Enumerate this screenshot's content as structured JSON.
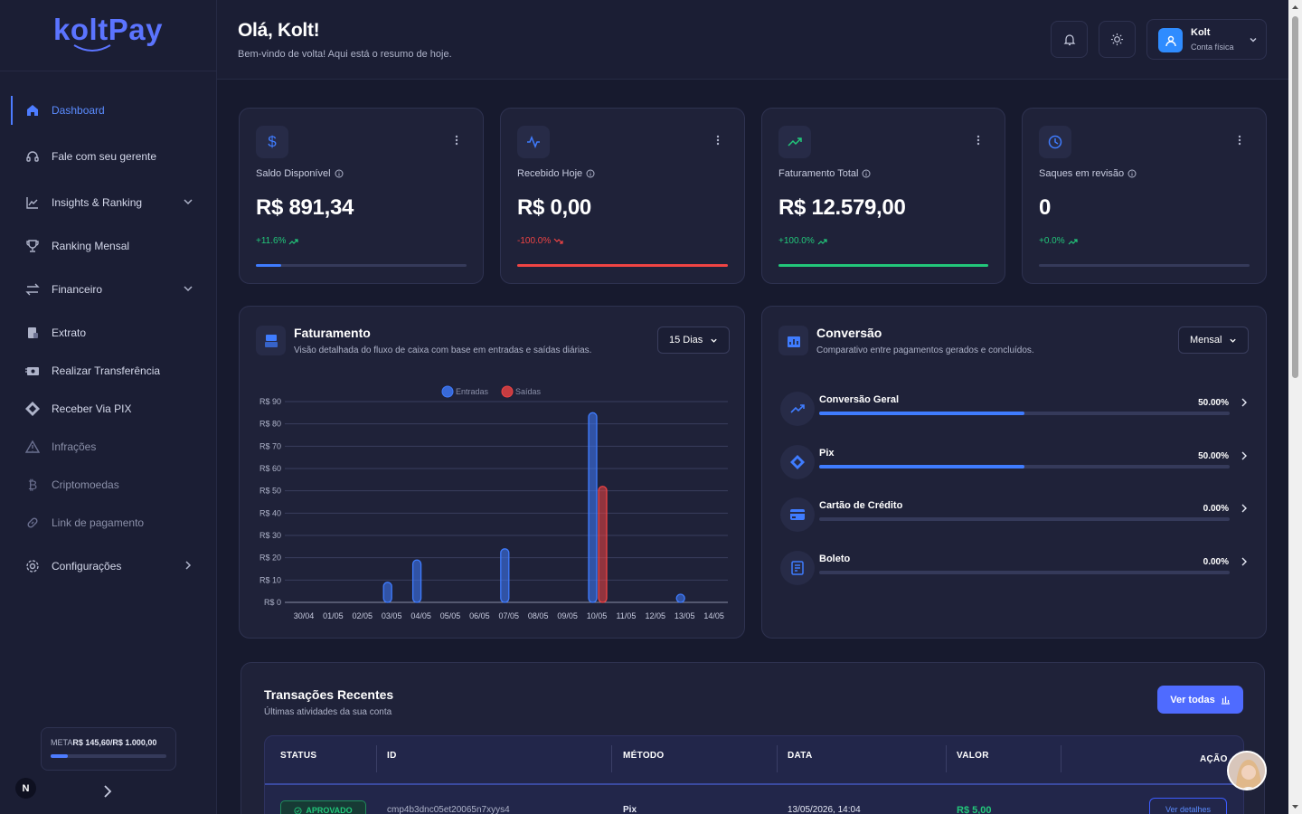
{
  "brand": {
    "name": "koltPay"
  },
  "sidebar": {
    "items": [
      {
        "label": "Dashboard",
        "icon": "home-icon",
        "active": true
      },
      {
        "label": "Fale com seu gerente",
        "icon": "headset-icon"
      },
      {
        "label": "Insights & Ranking",
        "icon": "chart-line-icon",
        "expandable": true
      },
      {
        "label": "Ranking Mensal",
        "icon": "trophy-icon"
      },
      {
        "label": "Financeiro",
        "icon": "transfer-arrows-icon",
        "expandable": true
      },
      {
        "label": "Extrato",
        "icon": "receipt-icon"
      },
      {
        "label": "Realizar Transferência",
        "icon": "money-transfer-icon"
      },
      {
        "label": "Receber Via PIX",
        "icon": "pix-icon"
      },
      {
        "label": "Infrações",
        "icon": "warning-icon",
        "disabled": true
      },
      {
        "label": "Criptomoedas",
        "icon": "bitcoin-icon",
        "disabled": true
      },
      {
        "label": "Link de pagamento",
        "icon": "link-icon",
        "disabled": true
      },
      {
        "label": "Configurações",
        "icon": "gear-icon",
        "submenu": true
      }
    ],
    "meta": {
      "label": "META",
      "value": "R$ 145,60/R$ 1.000,00",
      "progress": 0.1456
    },
    "badge": "N"
  },
  "header": {
    "greeting": "Olá, Kolt!",
    "subtitle": "Bem-vindo de volta! Aqui está o resumo de hoje.",
    "user": {
      "name": "Kolt",
      "type": "Conta física"
    }
  },
  "stats": [
    {
      "label": "Saldo Disponível",
      "value": "R$ 891,34",
      "change": "+11.6%",
      "trend": "up",
      "progress": 0.12,
      "accent": "#3f7cff",
      "icon": "dollar-icon"
    },
    {
      "label": "Recebido Hoje",
      "value": "R$ 0,00",
      "change": "-100.0%",
      "trend": "down",
      "progress": 1.0,
      "accent": "#ef4444",
      "icon": "activity-icon"
    },
    {
      "label": "Faturamento Total",
      "value": "R$ 12.579,00",
      "change": "+100.0%",
      "trend": "up",
      "progress": 1.0,
      "accent": "#22c77a",
      "icon": "trending-up-icon"
    },
    {
      "label": "Saques em revisão",
      "value": "0",
      "change": "+0.0%",
      "trend": "up",
      "progress": 0.0,
      "accent": "#3f7cff",
      "icon": "clock-icon"
    }
  ],
  "faturamento": {
    "title": "Faturamento",
    "subtitle": "Visão detalhada do fluxo de caixa com base em entradas e saídas diárias.",
    "range": "15 Dias"
  },
  "chart_data": {
    "type": "bar",
    "categories": [
      "30/04",
      "01/05",
      "02/05",
      "03/05",
      "04/05",
      "05/05",
      "06/05",
      "07/05",
      "08/05",
      "09/05",
      "10/05",
      "11/05",
      "12/05",
      "13/05",
      "14/05"
    ],
    "series": [
      {
        "name": "Entradas",
        "color": "#3f7cff",
        "values": [
          0,
          0,
          0,
          9,
          19,
          0,
          0,
          24,
          0,
          0,
          85,
          0,
          0,
          3,
          0
        ]
      },
      {
        "name": "Saídas",
        "color": "#ef4444",
        "values": [
          0,
          0,
          0,
          0,
          0,
          0,
          0,
          0,
          0,
          0,
          52,
          0,
          0,
          0,
          0
        ]
      }
    ],
    "yticks": [
      "R$ 0",
      "R$ 10",
      "R$ 20",
      "R$ 30",
      "R$ 40",
      "R$ 50",
      "R$ 60",
      "R$ 70",
      "R$ 80",
      "R$ 90"
    ],
    "ylim": [
      0,
      90
    ],
    "legend": "top-center",
    "grid": true
  },
  "conversao": {
    "title": "Conversão",
    "subtitle": "Comparativo entre pagamentos gerados e concluídos.",
    "range": "Mensal",
    "items": [
      {
        "label": "Conversão Geral",
        "value": "50.00%",
        "progress": 0.5,
        "icon": "trending-up-icon"
      },
      {
        "label": "Pix",
        "value": "50.00%",
        "progress": 0.5,
        "icon": "pix-icon"
      },
      {
        "label": "Cartão de Crédito",
        "value": "0.00%",
        "progress": 0.0,
        "icon": "credit-card-icon"
      },
      {
        "label": "Boleto",
        "value": "0.00%",
        "progress": 0.0,
        "icon": "boleto-icon"
      }
    ]
  },
  "transacoes": {
    "title": "Transações Recentes",
    "subtitle": "Últimas atividades da sua conta",
    "view_all": "Ver todas",
    "columns": [
      "STATUS",
      "ID",
      "MÉTODO",
      "DATA",
      "VALOR",
      "AÇÃO"
    ],
    "rows": [
      {
        "status": "APROVADO",
        "id": "cmp4b3dnc05et20065n7xyys4",
        "method": "Pix",
        "date": "13/05/2026, 14:04",
        "value": "R$ 5,00",
        "action": "Ver detalhes"
      }
    ]
  }
}
